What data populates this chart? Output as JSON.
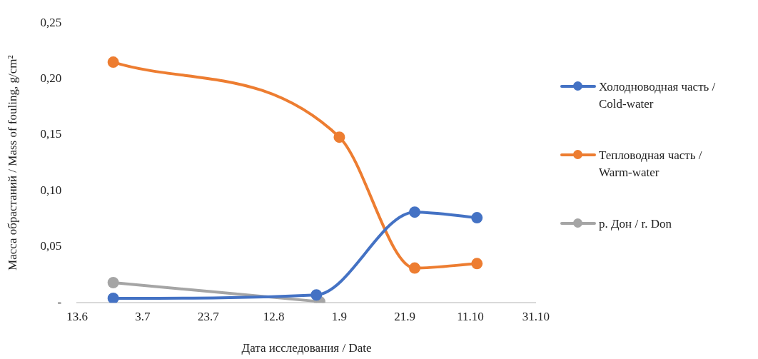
{
  "chart_data": {
    "type": "line",
    "xlabel": "Дата исследования / Date",
    "ylabel": "Масса обрастаний / Mass of fouling, g/cm²",
    "xlim": [
      "--06-13",
      "--10-31"
    ],
    "xticks": [
      {
        "value": "--06-13",
        "label": "13.6"
      },
      {
        "value": "--07-03",
        "label": "3.7"
      },
      {
        "value": "--07-23",
        "label": "23.7"
      },
      {
        "value": "--08-12",
        "label": "12.8"
      },
      {
        "value": "--09-01",
        "label": "1.9"
      },
      {
        "value": "--09-21",
        "label": "21.9"
      },
      {
        "value": "--10-11",
        "label": "11.10"
      },
      {
        "value": "--10-31",
        "label": "31.10"
      }
    ],
    "ylim": [
      0,
      0.25
    ],
    "yticks": [
      {
        "value": 0,
        "label": "-"
      },
      {
        "value": 0.05,
        "label": "0,05"
      },
      {
        "value": 0.1,
        "label": "0,10"
      },
      {
        "value": 0.15,
        "label": "0,15"
      },
      {
        "value": 0.2,
        "label": "0,20"
      },
      {
        "value": 0.25,
        "label": "0,25"
      }
    ],
    "grid": false,
    "legend": "right",
    "marker": "circle",
    "line_style": "solid",
    "series": [
      {
        "name": "Холодноводная часть / Cold-water",
        "color": "#4472c4",
        "x": [
          "--06-24",
          "--08-25",
          "--09-24",
          "--10-13"
        ],
        "values": [
          0.004,
          0.007,
          0.081,
          0.076
        ]
      },
      {
        "name": "Тепловодная часть / Warm-water",
        "color": "#ed7d31",
        "x": [
          "--06-24",
          "--09-01",
          "--09-24",
          "--10-13"
        ],
        "values": [
          0.215,
          0.148,
          0.031,
          0.035
        ]
      },
      {
        "name": "р. Дон / r. Don",
        "color": "#a5a5a5",
        "x": [
          "--06-24",
          "--08-26"
        ],
        "values": [
          0.018,
          0.001
        ]
      }
    ]
  }
}
